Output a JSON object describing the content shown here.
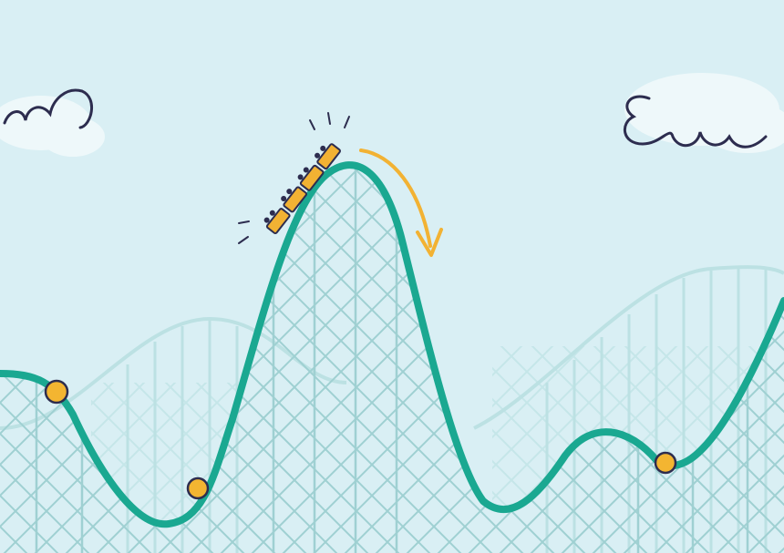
{
  "scene": {
    "description_visible_text": "",
    "colors": {
      "sky": "#d9eff4",
      "cloud": "#eef8fa",
      "track": "#1aa891",
      "scaffold": "#9fd0d2",
      "scaffold_faint": "#b9e0e2",
      "cart": "#f2b233",
      "arrow": "#f2b233",
      "ink": "#2d2d4f",
      "marker": "#f3b531"
    },
    "icons": {
      "left_swirl": "wind-swirl-icon",
      "right_swirl": "wind-swirl-icon",
      "cart": "roller-coaster-cart-icon",
      "arrow": "curved-arrow-icon",
      "markers": "track-marker-dot"
    }
  }
}
